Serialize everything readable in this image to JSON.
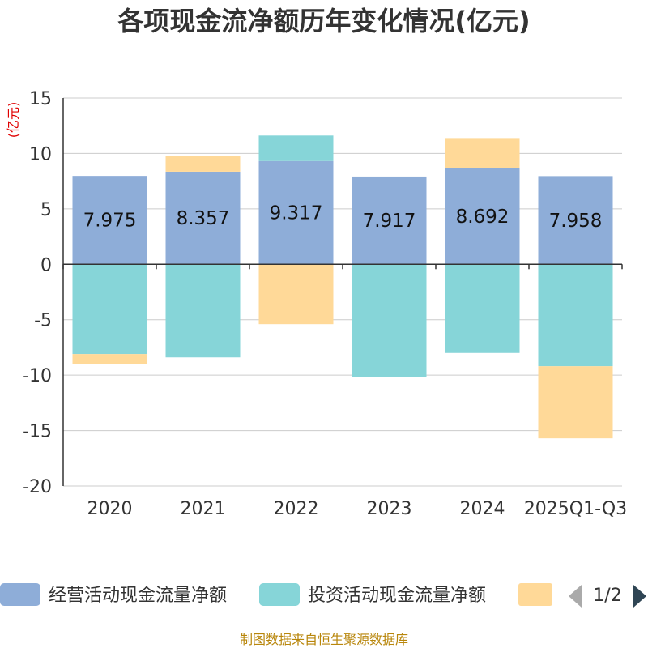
{
  "chart_data": {
    "type": "bar",
    "stacked": true,
    "title": "各项现金流净额历年变化情况(亿元)",
    "ylabel": "(亿元)",
    "ylim": [
      -20,
      15
    ],
    "yticks": [
      15,
      10,
      5,
      0,
      -5,
      -10,
      -15,
      -20
    ],
    "grid": true,
    "categories": [
      "2020",
      "2021",
      "2022",
      "2023",
      "2024",
      "2025Q1-Q3"
    ],
    "series": [
      {
        "name": "经营活动现金流量净额",
        "color": "#8eadd8",
        "values": [
          7.975,
          8.357,
          9.317,
          7.917,
          8.692,
          7.958
        ]
      },
      {
        "name": "投资活动现金流量净额",
        "color": "#86d5d8",
        "values": [
          -8.1,
          -8.4,
          2.3,
          -10.2,
          -8.0,
          -9.2
        ]
      },
      {
        "name": "",
        "color": "#ffd998",
        "values": [
          -0.9,
          1.4,
          -5.4,
          0,
          2.7,
          -6.5
        ]
      }
    ],
    "data_labels": [
      "7.975",
      "8.357",
      "9.317",
      "7.917",
      "8.692",
      "7.958"
    ],
    "legend_position": "bottom"
  },
  "legend": {
    "pager": "1/2"
  },
  "footer": {
    "source": "制图数据来自恒生聚源数据库"
  }
}
